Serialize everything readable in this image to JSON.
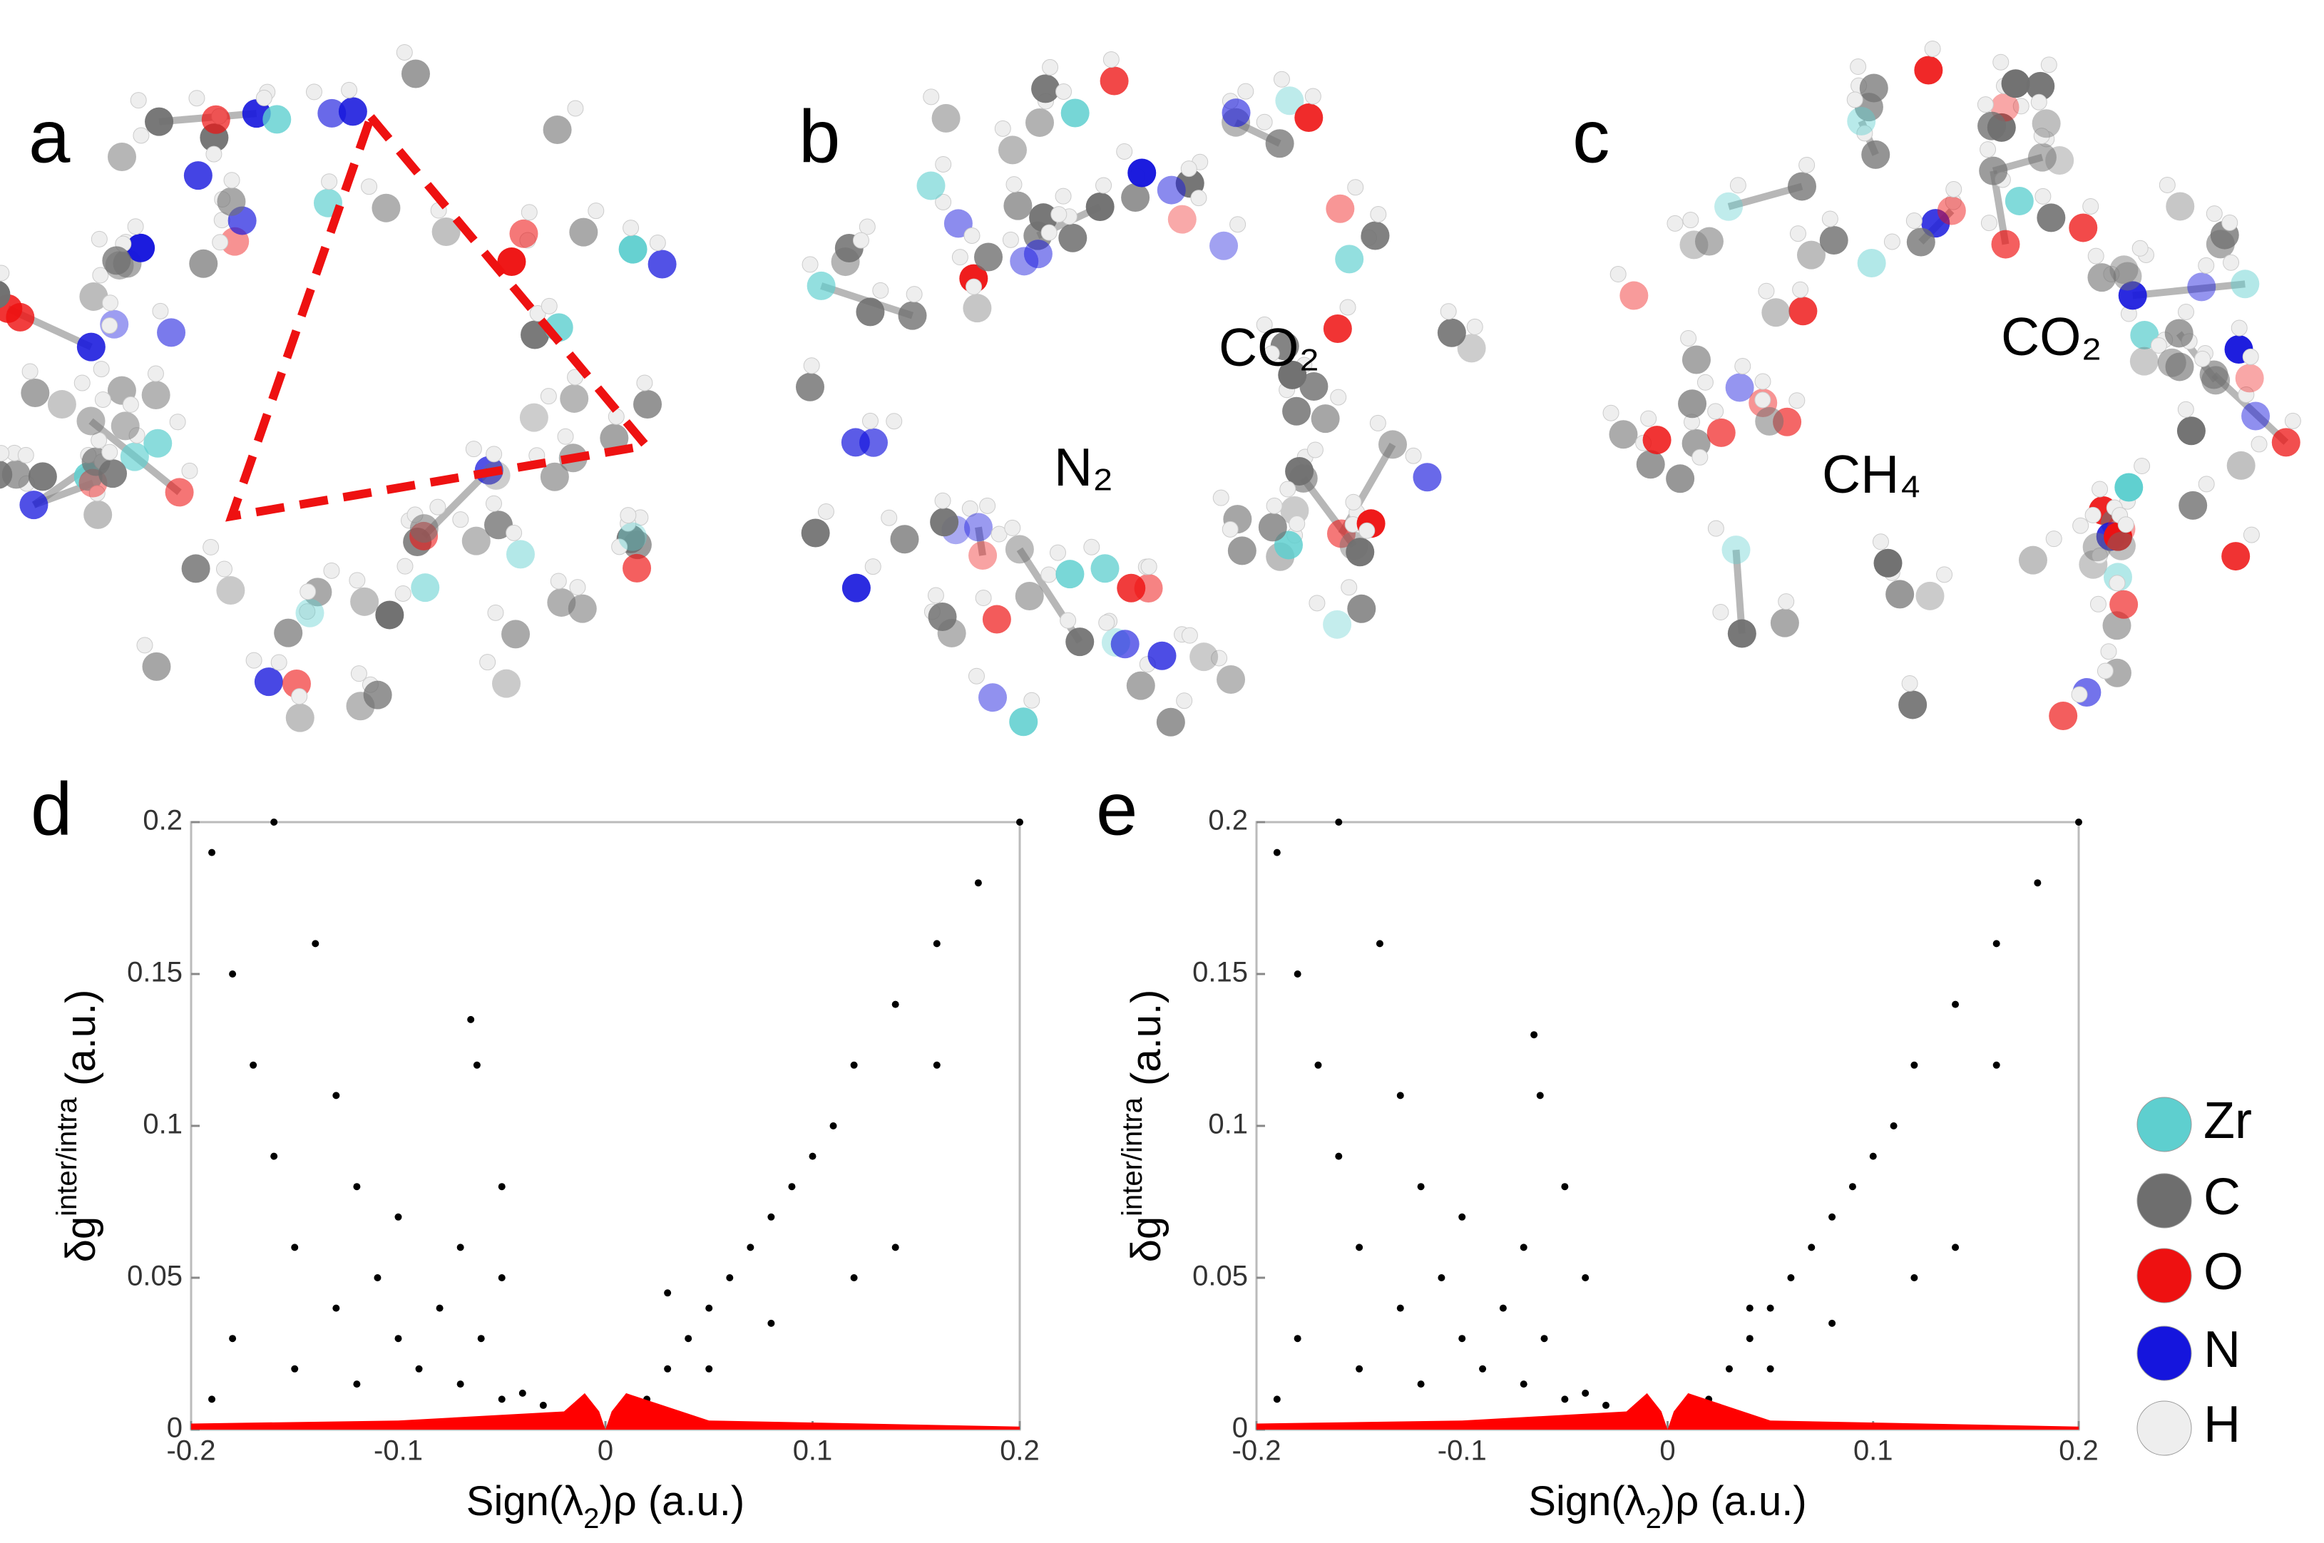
{
  "panels": [
    {
      "label": "a"
    },
    {
      "label": "b",
      "molecule_labels": [
        "CO₂",
        "N₂"
      ]
    },
    {
      "label": "c",
      "molecule_labels": [
        "CO₂",
        "CH₄"
      ]
    }
  ],
  "legend": [
    {
      "name": "Zr",
      "color": "#5ecfcf"
    },
    {
      "name": "C",
      "color": "#6e6e6e"
    },
    {
      "name": "O",
      "color": "#ee1111"
    },
    {
      "name": "N",
      "color": "#1515dd"
    },
    {
      "name": "H",
      "color": "#eeeeee"
    }
  ],
  "chart_data": [
    {
      "type": "scatter",
      "label": "d",
      "x_label": {
        "main": "Sign(λ",
        "sub": "2",
        "rest": ")ρ (a.u.)"
      },
      "y_label": {
        "main": "δg",
        "sup": "inter/intra",
        "rest": " (a.u.)"
      },
      "xlim": [
        -0.2,
        0.2
      ],
      "ylim": [
        0,
        0.2
      ],
      "xticks": [
        -0.2,
        -0.1,
        0,
        0.1,
        0.2
      ],
      "yticks": [
        0,
        0.05,
        0.1,
        0.15,
        0.2
      ],
      "series": [
        {
          "color": "#000000",
          "mark": "points",
          "x": [
            -0.19,
            -0.18,
            -0.17,
            -0.16,
            -0.16,
            -0.15,
            -0.14,
            -0.13,
            -0.13,
            -0.12,
            -0.11,
            -0.1,
            -0.1,
            -0.09,
            -0.08,
            -0.07,
            -0.06,
            -0.05,
            -0.04,
            -0.03,
            -0.18,
            -0.19,
            -0.15,
            -0.12,
            -0.065,
            -0.062,
            -0.05,
            -0.07,
            -0.05,
            0.01,
            0.02,
            0.03,
            0.04,
            0.05,
            0.06,
            0.07,
            0.08,
            0.09,
            0.1,
            0.11,
            0.12,
            0.14,
            0.16,
            0.18,
            0.2,
            0.05,
            0.08,
            0.12,
            0.03,
            0.14,
            0.16
          ],
          "y": [
            0.19,
            0.15,
            0.12,
            0.2,
            0.09,
            0.06,
            0.16,
            0.11,
            0.04,
            0.08,
            0.05,
            0.03,
            0.07,
            0.02,
            0.04,
            0.015,
            0.03,
            0.01,
            0.012,
            0.008,
            0.03,
            0.01,
            0.02,
            0.015,
            0.135,
            0.12,
            0.08,
            0.06,
            0.05,
            0.005,
            0.01,
            0.02,
            0.03,
            0.04,
            0.05,
            0.06,
            0.07,
            0.08,
            0.09,
            0.1,
            0.12,
            0.14,
            0.16,
            0.18,
            0.2,
            0.02,
            0.035,
            0.05,
            0.045,
            0.06,
            0.12
          ]
        },
        {
          "color": "#ff0000",
          "mark": "area",
          "x": [
            -0.2,
            -0.1,
            -0.02,
            -0.01,
            -0.003,
            0,
            0.003,
            0.01,
            0.05,
            0.2
          ],
          "y": [
            0.002,
            0.003,
            0.006,
            0.012,
            0.006,
            0,
            0.006,
            0.012,
            0.003,
            0.001
          ]
        }
      ]
    },
    {
      "type": "scatter",
      "label": "e",
      "x_label": {
        "main": "Sign(λ",
        "sub": "2",
        "rest": ")ρ (a.u.)"
      },
      "y_label": {
        "main": "δg",
        "sup": "inter/intra",
        "rest": " (a.u.)"
      },
      "xlim": [
        -0.2,
        0.2
      ],
      "ylim": [
        0,
        0.2
      ],
      "xticks": [
        -0.2,
        -0.1,
        0,
        0.1,
        0.2
      ],
      "yticks": [
        0,
        0.05,
        0.1,
        0.15,
        0.2
      ],
      "series": [
        {
          "color": "#000000",
          "mark": "points",
          "x": [
            -0.19,
            -0.18,
            -0.17,
            -0.16,
            -0.16,
            -0.15,
            -0.14,
            -0.13,
            -0.13,
            -0.12,
            -0.11,
            -0.1,
            -0.1,
            -0.09,
            -0.08,
            -0.07,
            -0.06,
            -0.05,
            -0.04,
            -0.03,
            -0.18,
            -0.19,
            -0.15,
            -0.12,
            -0.065,
            -0.062,
            -0.05,
            -0.07,
            -0.04,
            0.01,
            0.02,
            0.03,
            0.04,
            0.05,
            0.06,
            0.07,
            0.08,
            0.09,
            0.1,
            0.11,
            0.12,
            0.14,
            0.16,
            0.18,
            0.2,
            0.05,
            0.08,
            0.12,
            0.04,
            0.14,
            0.16
          ],
          "y": [
            0.19,
            0.15,
            0.12,
            0.2,
            0.09,
            0.06,
            0.16,
            0.11,
            0.04,
            0.08,
            0.05,
            0.03,
            0.07,
            0.02,
            0.04,
            0.015,
            0.03,
            0.01,
            0.012,
            0.008,
            0.03,
            0.01,
            0.02,
            0.015,
            0.13,
            0.11,
            0.08,
            0.06,
            0.05,
            0.005,
            0.01,
            0.02,
            0.03,
            0.04,
            0.05,
            0.06,
            0.07,
            0.08,
            0.09,
            0.1,
            0.12,
            0.14,
            0.16,
            0.18,
            0.2,
            0.02,
            0.035,
            0.05,
            0.04,
            0.06,
            0.12
          ]
        },
        {
          "color": "#ff0000",
          "mark": "area",
          "x": [
            -0.2,
            -0.1,
            -0.02,
            -0.01,
            -0.003,
            0,
            0.003,
            0.01,
            0.05,
            0.2
          ],
          "y": [
            0.002,
            0.003,
            0.006,
            0.012,
            0.006,
            0,
            0.006,
            0.012,
            0.003,
            0.001
          ]
        }
      ]
    }
  ]
}
